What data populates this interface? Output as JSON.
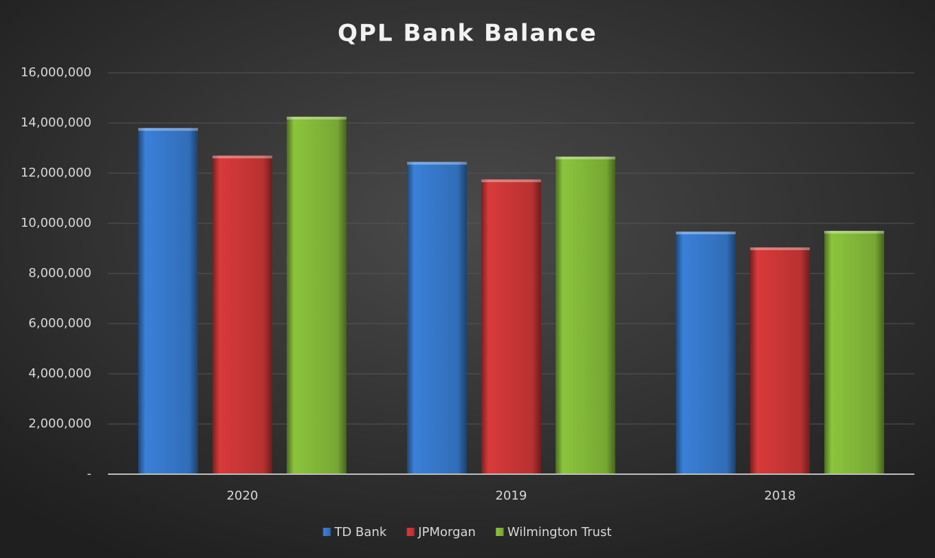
{
  "chart_data": {
    "type": "bar",
    "title": "QPL Bank Balance",
    "categories": [
      "2020",
      "2019",
      "2018"
    ],
    "series": [
      {
        "name": "TD Bank",
        "color": "#3a80d8",
        "values": [
          13800000,
          12450000,
          9670000
        ]
      },
      {
        "name": "JPMorgan",
        "color": "#d93a3a",
        "values": [
          12700000,
          11750000,
          9040000
        ]
      },
      {
        "name": "Wilmington Trust",
        "color": "#8cc43c",
        "values": [
          14250000,
          12660000,
          9700000
        ]
      }
    ],
    "ylim": [
      0,
      16000000
    ],
    "yticks": [
      {
        "value": 0,
        "label": "-"
      },
      {
        "value": 2000000,
        "label": "2,000,000"
      },
      {
        "value": 4000000,
        "label": "4,000,000"
      },
      {
        "value": 6000000,
        "label": "6,000,000"
      },
      {
        "value": 8000000,
        "label": "8,000,000"
      },
      {
        "value": 10000000,
        "label": "10,000,000"
      },
      {
        "value": 12000000,
        "label": "12,000,000"
      },
      {
        "value": 14000000,
        "label": "14,000,000"
      },
      {
        "value": 16000000,
        "label": "16,000,000"
      }
    ],
    "grid": true,
    "legend": "bottom"
  }
}
